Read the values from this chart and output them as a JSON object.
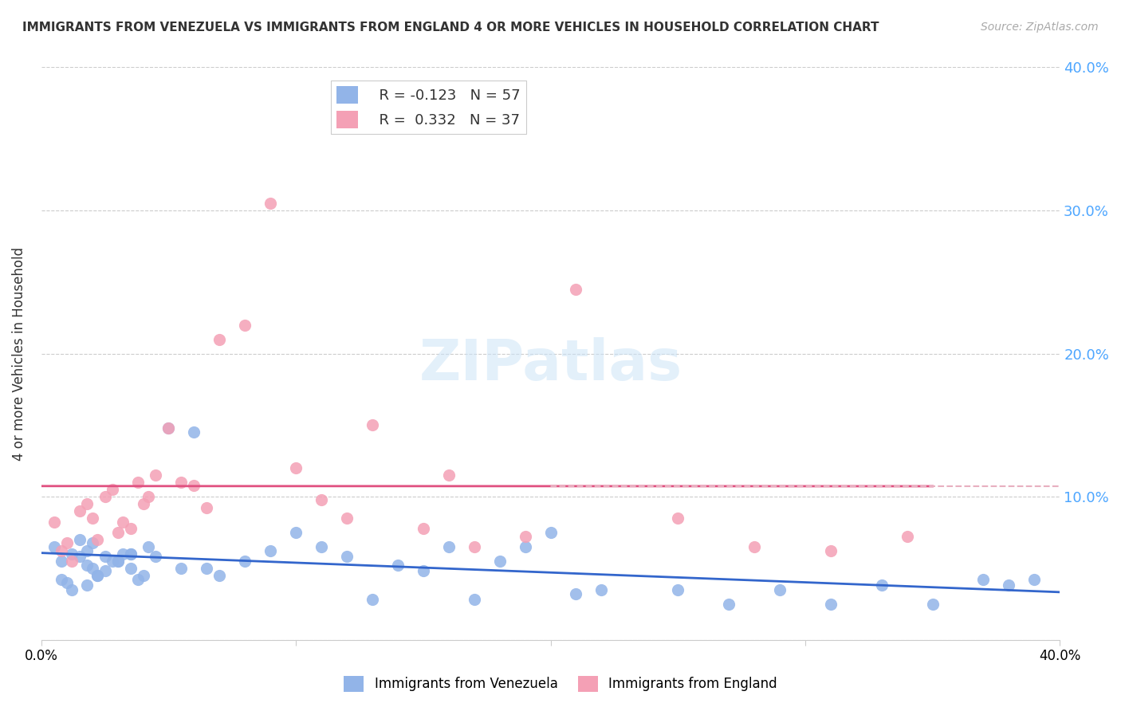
{
  "title": "IMMIGRANTS FROM VENEZUELA VS IMMIGRANTS FROM ENGLAND 4 OR MORE VEHICLES IN HOUSEHOLD CORRELATION CHART",
  "source": "Source: ZipAtlas.com",
  "ylabel": "4 or more Vehicles in Household",
  "xmin": 0.0,
  "xmax": 0.4,
  "ymin": 0.0,
  "ymax": 0.4,
  "yticks": [
    0.0,
    0.1,
    0.2,
    0.3,
    0.4
  ],
  "ytick_labels": [
    "",
    "10.0%",
    "20.0%",
    "30.0%",
    "40.0%"
  ],
  "xticks": [
    0.0,
    0.1,
    0.2,
    0.3,
    0.4
  ],
  "xtick_labels": [
    "0.0%",
    "",
    "",
    "",
    "40.0%"
  ],
  "legend_blue_r": "-0.123",
  "legend_blue_n": "57",
  "legend_pink_r": "0.332",
  "legend_pink_n": "37",
  "blue_color": "#92b4e8",
  "pink_color": "#f4a0b5",
  "blue_line_color": "#3366cc",
  "pink_line_color": "#e05080",
  "pink_dash_color": "#e8b0c0",
  "watermark": "ZIPatlas",
  "blue_scatter_x": [
    0.008,
    0.012,
    0.005,
    0.015,
    0.018,
    0.02,
    0.022,
    0.025,
    0.03,
    0.035,
    0.01,
    0.012,
    0.008,
    0.018,
    0.022,
    0.028,
    0.032,
    0.035,
    0.038,
    0.042,
    0.015,
    0.018,
    0.02,
    0.025,
    0.03,
    0.035,
    0.04,
    0.045,
    0.05,
    0.055,
    0.06,
    0.065,
    0.07,
    0.08,
    0.09,
    0.1,
    0.11,
    0.12,
    0.13,
    0.14,
    0.15,
    0.16,
    0.17,
    0.18,
    0.19,
    0.2,
    0.21,
    0.22,
    0.25,
    0.27,
    0.29,
    0.31,
    0.33,
    0.35,
    0.37,
    0.38,
    0.39
  ],
  "blue_scatter_y": [
    0.055,
    0.06,
    0.065,
    0.058,
    0.062,
    0.05,
    0.045,
    0.048,
    0.055,
    0.06,
    0.04,
    0.035,
    0.042,
    0.038,
    0.045,
    0.055,
    0.06,
    0.05,
    0.042,
    0.065,
    0.07,
    0.052,
    0.068,
    0.058,
    0.055,
    0.06,
    0.045,
    0.058,
    0.148,
    0.05,
    0.145,
    0.05,
    0.045,
    0.055,
    0.062,
    0.075,
    0.065,
    0.058,
    0.028,
    0.052,
    0.048,
    0.065,
    0.028,
    0.055,
    0.065,
    0.075,
    0.032,
    0.035,
    0.035,
    0.025,
    0.035,
    0.025,
    0.038,
    0.025,
    0.042,
    0.038,
    0.042
  ],
  "pink_scatter_x": [
    0.005,
    0.008,
    0.01,
    0.012,
    0.015,
    0.018,
    0.02,
    0.022,
    0.025,
    0.028,
    0.03,
    0.032,
    0.035,
    0.038,
    0.04,
    0.042,
    0.045,
    0.05,
    0.055,
    0.06,
    0.065,
    0.07,
    0.08,
    0.09,
    0.1,
    0.11,
    0.12,
    0.13,
    0.15,
    0.16,
    0.17,
    0.19,
    0.21,
    0.25,
    0.28,
    0.31,
    0.34
  ],
  "pink_scatter_y": [
    0.082,
    0.062,
    0.068,
    0.055,
    0.09,
    0.095,
    0.085,
    0.07,
    0.1,
    0.105,
    0.075,
    0.082,
    0.078,
    0.11,
    0.095,
    0.1,
    0.115,
    0.148,
    0.11,
    0.108,
    0.092,
    0.21,
    0.22,
    0.305,
    0.12,
    0.098,
    0.085,
    0.15,
    0.078,
    0.115,
    0.065,
    0.072,
    0.245,
    0.085,
    0.065,
    0.062,
    0.072
  ]
}
